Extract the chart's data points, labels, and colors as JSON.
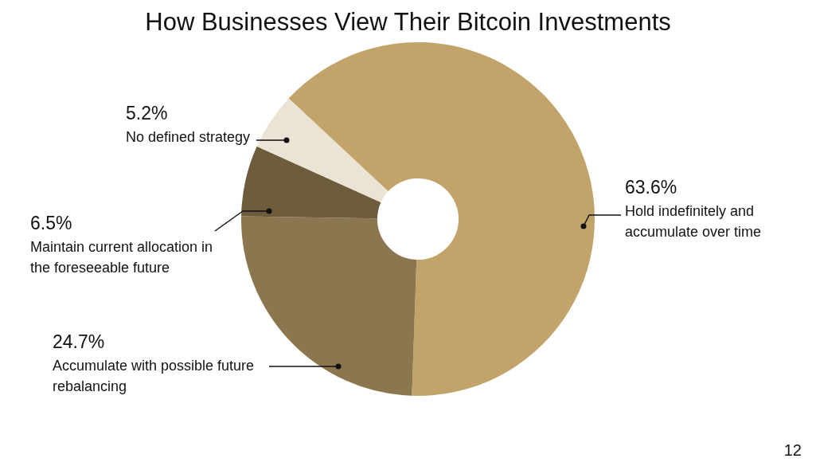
{
  "chart_data": {
    "type": "donut",
    "title": "How Businesses View Their Bitcoin Investments",
    "categories": [
      "Hold indefinitely and accumulate over time",
      "Accumulate with possible future rebalancing",
      "Maintain current allocation in the foreseeable future",
      "No defined strategy"
    ],
    "values": [
      63.6,
      24.7,
      6.5,
      5.2
    ],
    "value_labels": [
      "63.6%",
      "24.7%",
      "6.5%",
      "5.2%"
    ],
    "colors": [
      "#c2a46b",
      "#8c7650",
      "#6e5d3c",
      "#ebe3d3"
    ],
    "legend": false,
    "annotations": [
      "12"
    ]
  }
}
